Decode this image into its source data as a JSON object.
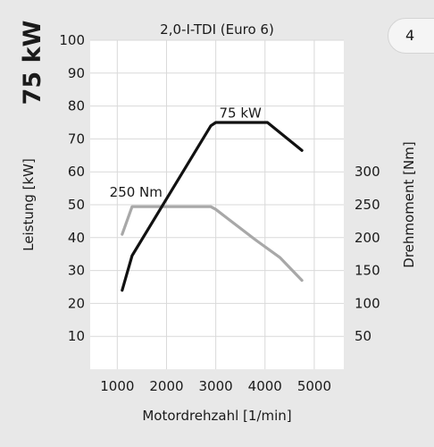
{
  "page_number": "4",
  "side_title": "75 kW",
  "chart_data": {
    "type": "line",
    "title": "2,0-I-TDI (Euro 6)",
    "xlabel": "Motordrehzahl [1/min]",
    "ylabel_left": "Leistung [kW]",
    "ylabel_right": "Drehmoment [Nm]",
    "xlim": [
      450,
      5600
    ],
    "ylim_left": [
      0,
      100
    ],
    "ylim_right": [
      0,
      500
    ],
    "x_ticks": [
      1000,
      2000,
      3000,
      4000,
      5000
    ],
    "y_ticks_left": [
      10,
      20,
      30,
      40,
      50,
      60,
      70,
      80,
      90,
      100
    ],
    "y_ticks_right": [
      50,
      100,
      150,
      200,
      250,
      300
    ],
    "grid": true,
    "series": [
      {
        "axis": "left",
        "color": "#111111",
        "x": [
          1100,
          1300,
          2900,
          3000,
          4050,
          4750
        ],
        "y": [
          24,
          34.5,
          74,
          75,
          75,
          66.5
        ]
      },
      {
        "axis": "right",
        "color": "#a8a8a8",
        "x": [
          1100,
          1300,
          2900,
          3000,
          3800,
          4300,
          4750
        ],
        "y": [
          205,
          247,
          247,
          243,
          197,
          170,
          135
        ]
      }
    ],
    "annotations": [
      {
        "text": "75 kW",
        "x": 3500,
        "y": 76.5,
        "axis": "left"
      },
      {
        "text": "250 Nm",
        "x": 1380,
        "y": 52.5,
        "axis": "left"
      }
    ]
  }
}
